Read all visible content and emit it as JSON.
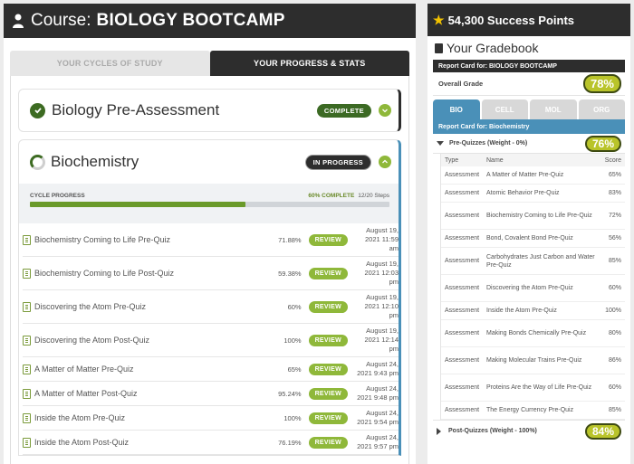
{
  "course": {
    "label": "Course:",
    "name": "BIOLOGY BOOTCAMP"
  },
  "tabs": [
    {
      "label": "YOUR CYCLES OF STUDY",
      "active": false
    },
    {
      "label": "YOUR PROGRESS & STATS",
      "active": true
    }
  ],
  "pre_assessment": {
    "title": "Biology Pre-Assessment",
    "status": "COMPLETE"
  },
  "biochem": {
    "title": "Biochemistry",
    "status": "IN PROGRESS",
    "cycle_label": "CYCLE PROGRESS",
    "complete_text": "60% COMPLETE",
    "steps_text": "12/20 Steps",
    "progress_fraction": 0.6
  },
  "quizzes": [
    {
      "name": "Biochemistry Coming to Life Pre-Quiz",
      "score": "71.88%",
      "action": "REVIEW",
      "date": [
        "August 19,",
        "2021 11:59",
        "am"
      ]
    },
    {
      "name": "Biochemistry Coming to Life Post-Quiz",
      "score": "59.38%",
      "action": "REVIEW",
      "date": [
        "August 19,",
        "2021 12:03",
        "pm"
      ]
    },
    {
      "name": "Discovering the Atom Pre-Quiz",
      "score": "60%",
      "action": "REVIEW",
      "date": [
        "August 19,",
        "2021 12:10",
        "pm"
      ]
    },
    {
      "name": "Discovering the Atom Post-Quiz",
      "score": "100%",
      "action": "REVIEW",
      "date": [
        "August 19,",
        "2021 12:14",
        "pm"
      ]
    },
    {
      "name": "A Matter of Matter Pre-Quiz",
      "score": "65%",
      "action": "REVIEW",
      "date": [
        "August 24,",
        "2021 9:43 pm"
      ]
    },
    {
      "name": "A Matter of Matter Post-Quiz",
      "score": "95.24%",
      "action": "REVIEW",
      "date": [
        "August 24,",
        "2021 9:48 pm"
      ]
    },
    {
      "name": "Inside the Atom Pre-Quiz",
      "score": "100%",
      "action": "REVIEW",
      "date": [
        "August 24,",
        "2021 9:54 pm"
      ]
    },
    {
      "name": "Inside the Atom Post-Quiz",
      "score": "76.19%",
      "action": "REVIEW",
      "date": [
        "August 24,",
        "2021 9:57 pm"
      ]
    }
  ],
  "success_points": "54,300 Success Points",
  "gradebook": {
    "title": "Your Gradebook",
    "report_card": "Report Card for: BIOLOGY BOOTCAMP",
    "overall_label": "Overall Grade",
    "overall_grade": "78%",
    "subtabs": [
      "BIO",
      "CELL",
      "MOL",
      "ORG"
    ],
    "bio_report": "Report Card for: Biochemistry",
    "pre_quizzes_label": "Pre-Quizzes (Weight - 0%)",
    "pre_quizzes_grade": "76%",
    "columns": [
      "Type",
      "Name",
      "Score"
    ],
    "rows": [
      {
        "type": "Assessment",
        "name": "A Matter of Matter Pre-Quiz",
        "score": "65%"
      },
      {
        "type": "Assessment",
        "name": "Atomic Behavior Pre-Quiz",
        "score": "83%"
      },
      {
        "type": "Assessment",
        "name": "Biochemistry Coming to Life Pre-Quiz",
        "score": "72%"
      },
      {
        "type": "Assessment",
        "name": "Bond, Covalent Bond Pre-Quiz",
        "score": "56%"
      },
      {
        "type": "Assessment",
        "name": "Carbohydrates Just Carbon and Water Pre-Quiz",
        "score": "85%"
      },
      {
        "type": "Assessment",
        "name": "Discovering the Atom Pre-Quiz",
        "score": "60%"
      },
      {
        "type": "Assessment",
        "name": "Inside the Atom Pre-Quiz",
        "score": "100%"
      },
      {
        "type": "Assessment",
        "name": "Making Bonds Chemically Pre-Quiz",
        "score": "80%"
      },
      {
        "type": "Assessment",
        "name": "Making Molecular Trains Pre-Quiz",
        "score": "86%"
      },
      {
        "type": "Assessment",
        "name": "Proteins Are the Way of Life Pre-Quiz",
        "score": "60%"
      },
      {
        "type": "Assessment",
        "name": "The Energy Currency Pre-Quiz",
        "score": "85%"
      }
    ],
    "post_quizzes_label": "Post-Quizzes (Weight - 100%)",
    "post_quizzes_grade": "84%"
  },
  "colors": {
    "accent_green": "#8fb83a",
    "dark": "#2d2d2d",
    "blue": "#4a90b8",
    "grade_pill": "#b9c42a"
  }
}
